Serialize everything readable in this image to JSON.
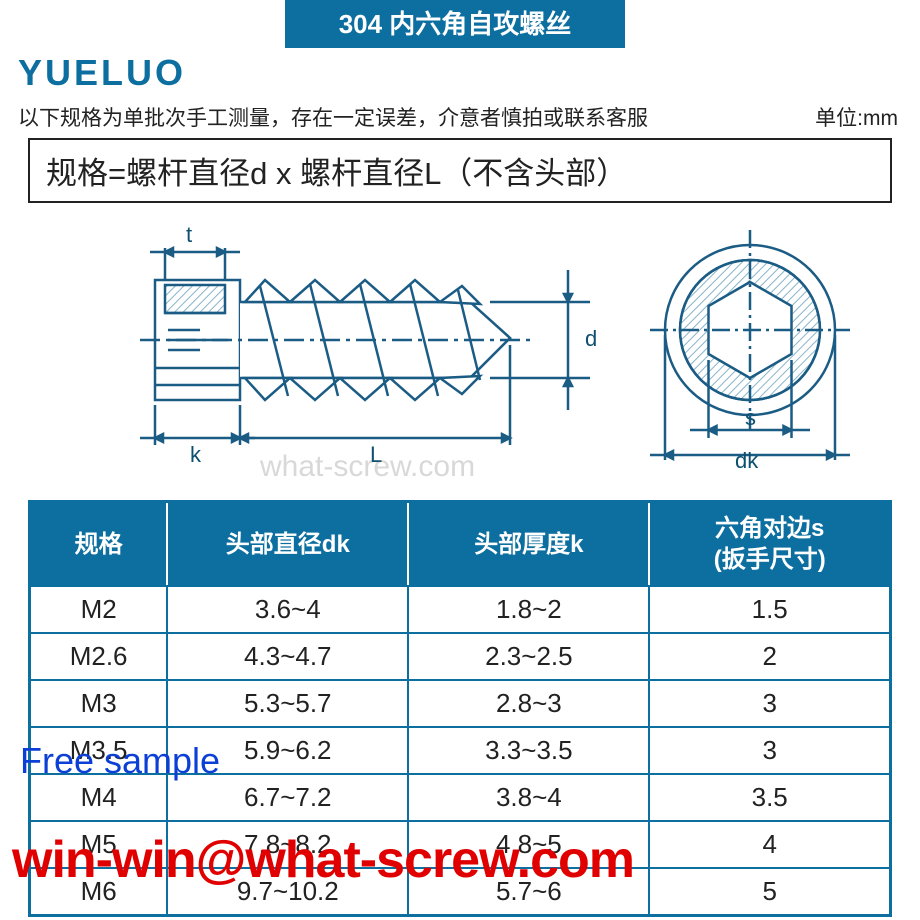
{
  "title": "304 内六角自攻螺丝",
  "logo": "YUELUO",
  "note": "以下规格为单批次手工测量，存在一定误差，介意者慎拍或联系客服",
  "unit_label": "单位:mm",
  "spec_formula": "规格=螺杆直径d x 螺杆直径L（不含头部）",
  "watermark": "what-screw.com",
  "diagram": {
    "labels": {
      "t": "t",
      "k": "k",
      "L": "L",
      "d": "d",
      "s": "s",
      "dk": "dk"
    },
    "colors": {
      "line": "#1b5c85",
      "fill": "#ffffff",
      "hatch": "#8ab4c9"
    }
  },
  "table": {
    "headers": [
      "规格",
      "头部直径dk",
      "头部厚度k",
      "六角对边s\n(扳手尺寸)"
    ],
    "rows": [
      [
        "M2",
        "3.6~4",
        "1.8~2",
        "1.5"
      ],
      [
        "M2.6",
        "4.3~4.7",
        "2.3~2.5",
        "2"
      ],
      [
        "M3",
        "5.3~5.7",
        "2.8~3",
        "3"
      ],
      [
        "M3.5",
        "5.9~6.2",
        "3.3~3.5",
        "3"
      ],
      [
        "M4",
        "6.7~7.2",
        "3.8~4",
        "3.5"
      ],
      [
        "M5",
        "7.8~8.2",
        "4.8~5",
        "4"
      ],
      [
        "M6",
        "9.7~10.2",
        "5.7~6",
        "5"
      ]
    ],
    "header_bg": "#0d6fa0",
    "header_color": "#ffffff",
    "border_color": "#0d6fa0",
    "cell_fontsize": 26
  },
  "overlays": {
    "free_sample": "Free sample",
    "email": "win-win@what-screw.com",
    "free_sample_color": "#0b3fd6",
    "email_color": "#e00000"
  }
}
